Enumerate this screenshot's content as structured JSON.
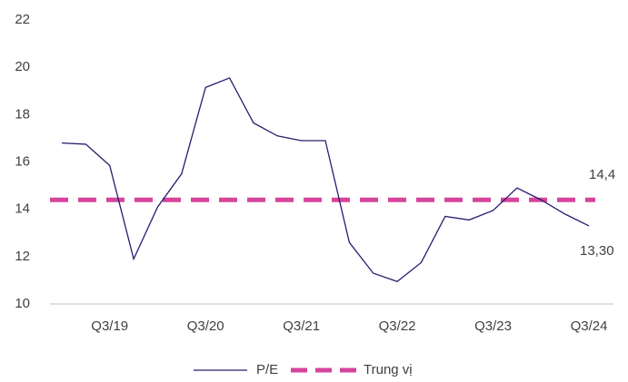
{
  "chart_data": {
    "type": "line",
    "categories": [
      null,
      null,
      "Q3/19",
      null,
      null,
      null,
      "Q3/20",
      null,
      null,
      null,
      "Q3/21",
      null,
      null,
      null,
      "Q3/22",
      null,
      null,
      null,
      "Q3/23",
      null,
      null,
      null,
      "Q3/24"
    ],
    "series": [
      {
        "name": "P/E",
        "color": "#2e1a6e",
        "values": [
          16.8,
          16.75,
          15.85,
          11.9,
          14.1,
          15.5,
          19.15,
          19.55,
          17.65,
          17.1,
          16.9,
          16.9,
          12.6,
          11.3,
          10.95,
          11.75,
          13.7,
          13.55,
          13.95,
          14.9,
          14.4,
          13.8,
          13.3
        ],
        "value_labels": [
          null,
          null,
          null,
          null,
          null,
          null,
          null,
          null,
          null,
          null,
          null,
          null,
          null,
          null,
          null,
          null,
          null,
          null,
          null,
          null,
          null,
          null,
          "13,30"
        ]
      }
    ],
    "median": {
      "name": "Trung vị",
      "value": 14.4,
      "label": "14,4",
      "color": "#d6449c"
    },
    "ylim": [
      10,
      22
    ],
    "yticks": [
      10,
      12,
      14,
      16,
      18,
      20,
      22
    ],
    "grid": false
  }
}
